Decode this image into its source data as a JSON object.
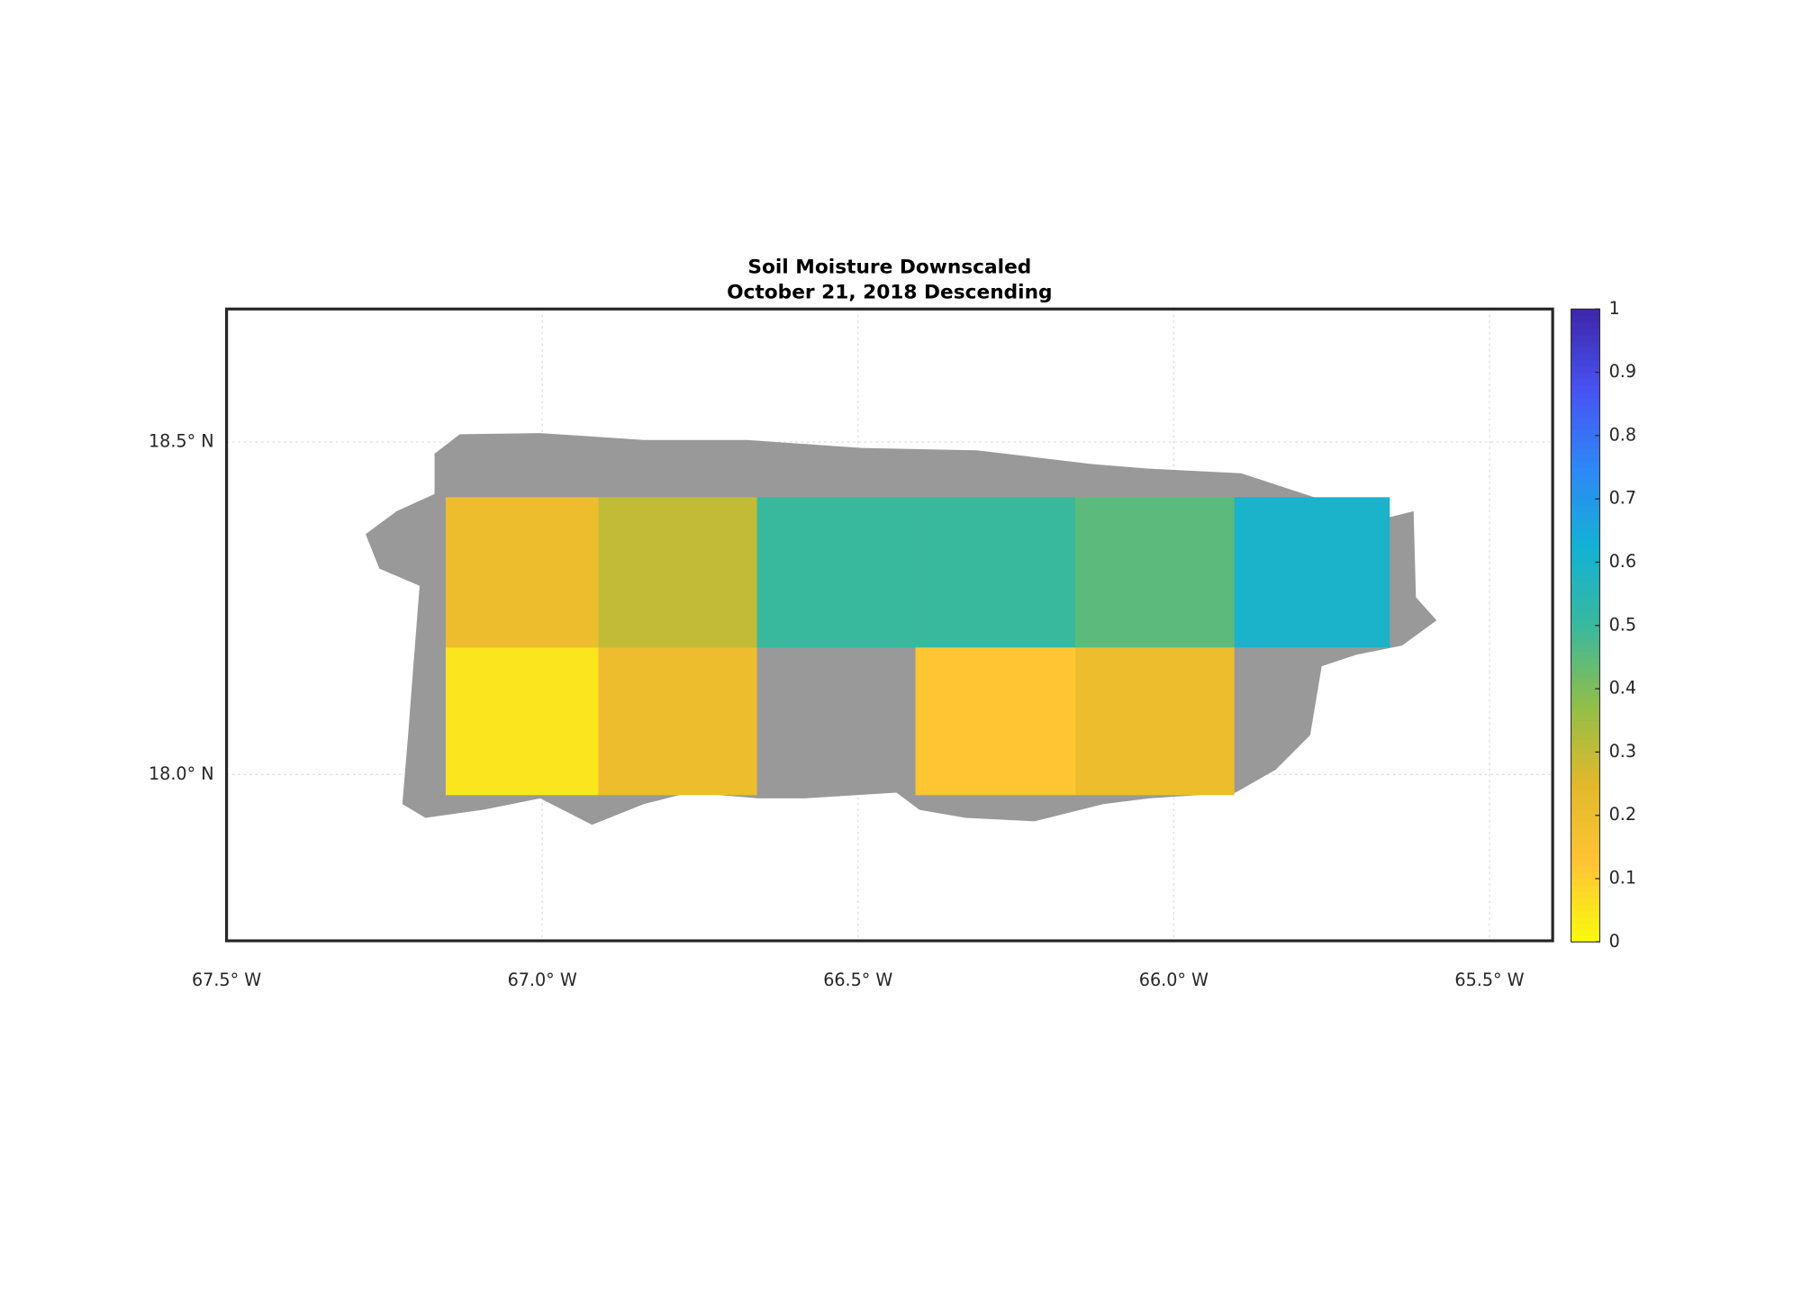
{
  "chart_data": {
    "type": "heatmap",
    "title": "Soil Moisture Downscaled",
    "subtitle": "October 21, 2018 Descending",
    "xlim": [
      -67.5,
      -65.4
    ],
    "ylim": [
      17.75,
      18.7
    ],
    "xticks": [
      {
        "value": -67.5,
        "label": "67.5° W"
      },
      {
        "value": -67.0,
        "label": "67.0° W"
      },
      {
        "value": -66.5,
        "label": "66.5° W"
      },
      {
        "value": -66.0,
        "label": "66.0° W"
      },
      {
        "value": -65.5,
        "label": "65.5° W"
      }
    ],
    "yticks": [
      {
        "value": 18.0,
        "label": "18.0° N"
      },
      {
        "value": 18.5,
        "label": "18.5° N"
      }
    ],
    "grid": true,
    "tile_lons": [
      -67.153,
      -66.911,
      -66.66,
      -66.409,
      -66.156,
      -65.904,
      -65.658
    ],
    "tile_lats": [
      18.417,
      18.191,
      17.969
    ],
    "values": [
      [
        0.2,
        0.3,
        0.5,
        0.5,
        0.45,
        0.6
      ],
      [
        0.05,
        0.2,
        null,
        0.12,
        0.2,
        null
      ]
    ],
    "colormap": "parula",
    "colormap_reversed": true,
    "clim": [
      0,
      1
    ],
    "cticks": [
      0,
      0.1,
      0.2,
      0.3,
      0.4,
      0.5,
      0.6,
      0.7,
      0.8,
      0.9,
      1
    ]
  }
}
